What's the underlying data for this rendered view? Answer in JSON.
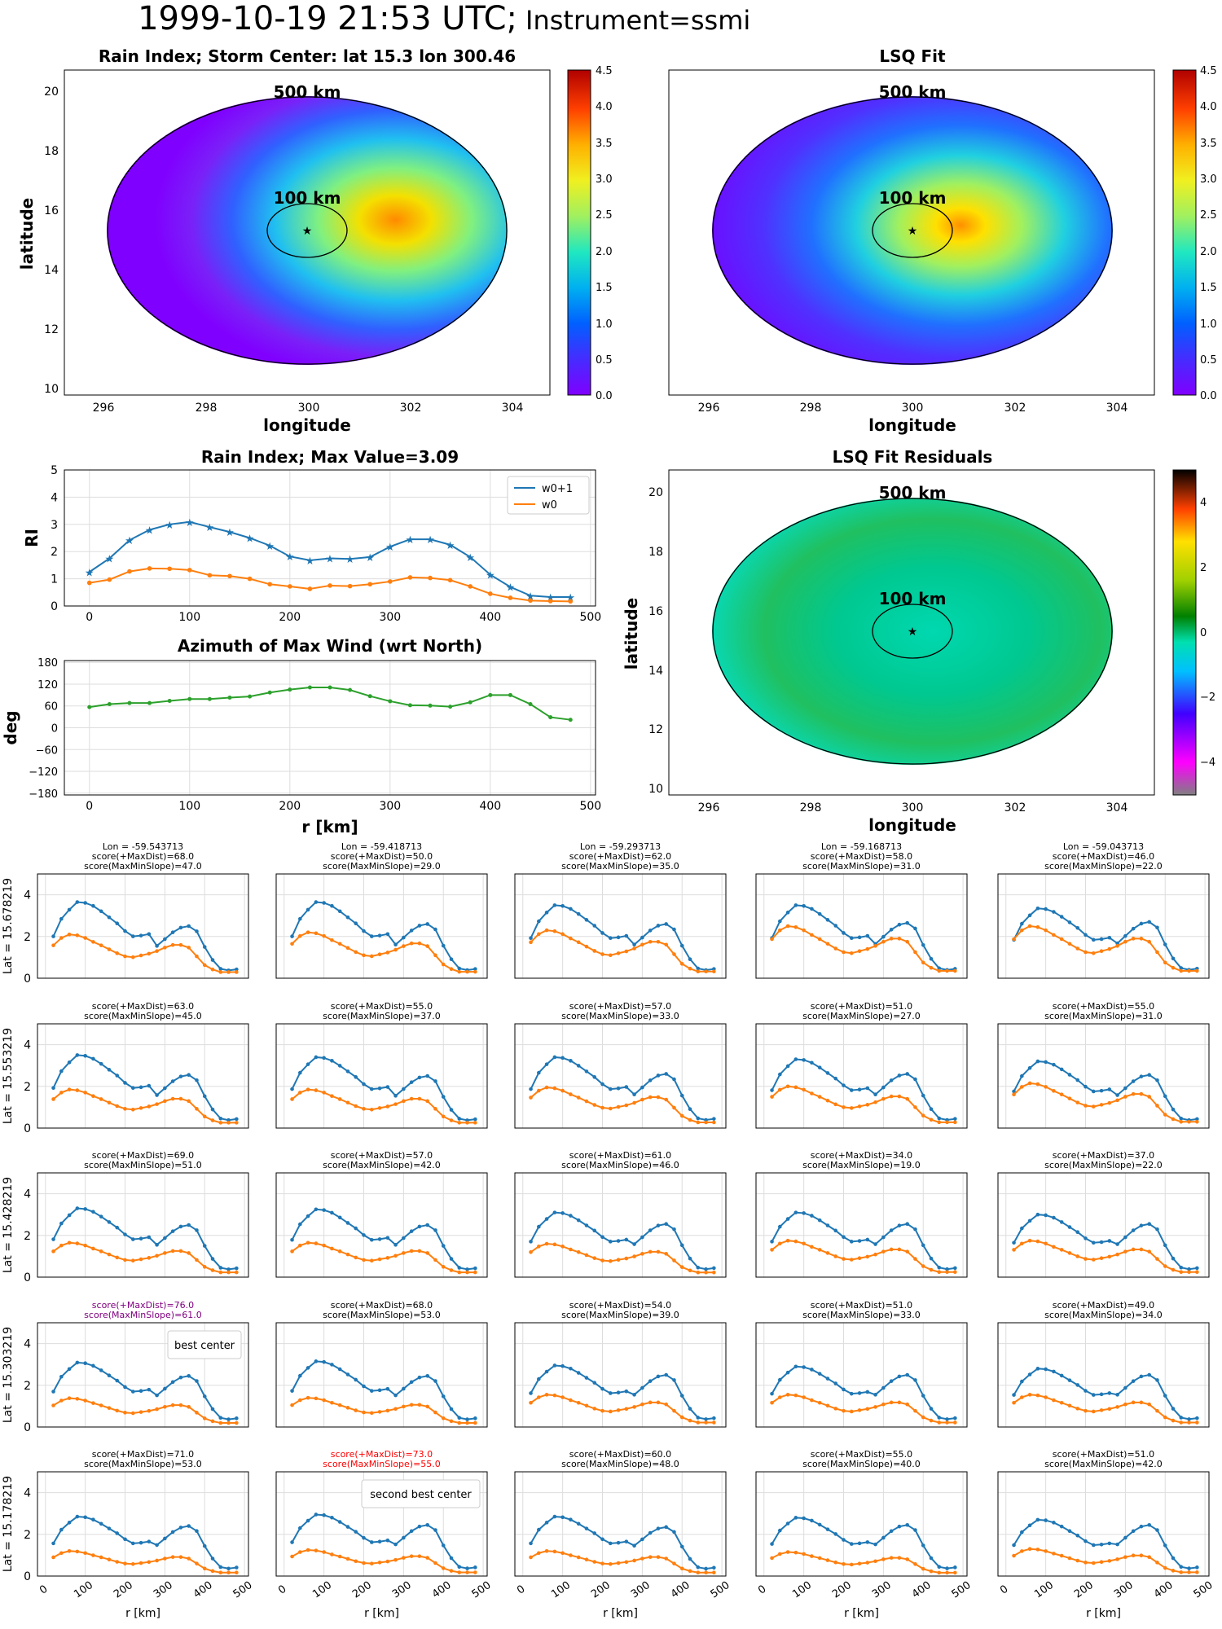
{
  "suptitle": {
    "main": "1999-10-19 21:53 UTC;",
    "instrument": "Instrument=ssmi"
  },
  "maps": [
    {
      "title": "Rain Index; Storm Center: lat 15.3 lon 300.46",
      "xlabel": "longitude",
      "ylabel": "latitude",
      "xticks": [
        "296",
        "298",
        "300",
        "302",
        "304",
        "306"
      ],
      "yticks": [
        "10",
        "12",
        "14",
        "16",
        "18",
        "20"
      ],
      "ring_outer": "500 km",
      "ring_inner": "100 km",
      "colorbar_ticks": [
        "0.0",
        "0.5",
        "1.0",
        "1.5",
        "2.0",
        "2.5",
        "3.0",
        "3.5",
        "4.0",
        "4.5"
      ]
    },
    {
      "title": "LSQ Fit",
      "xlabel": "longitude",
      "xticks": [
        "296",
        "298",
        "300",
        "302",
        "304",
        "306"
      ],
      "ring_outer": "500 km",
      "ring_inner": "100 km",
      "colorbar_ticks": [
        "0.0",
        "0.5",
        "1.0",
        "1.5",
        "2.0",
        "2.5",
        "3.0",
        "3.5",
        "4.0",
        "4.5"
      ]
    },
    {
      "title": "LSQ Fit Residuals",
      "xlabel": "longitude",
      "ylabel": "latitude",
      "xticks": [
        "296",
        "298",
        "300",
        "302",
        "304",
        "306"
      ],
      "yticks": [
        "10",
        "12",
        "14",
        "16",
        "18",
        "20"
      ],
      "ring_outer": "500 km",
      "ring_inner": "100 km",
      "colorbar_ticks": [
        "4",
        "2",
        "0",
        "−2",
        "−4"
      ]
    }
  ],
  "chart_data": [
    {
      "type": "heatmap",
      "title": "Rain Index; Storm Center: lat 15.3 lon 300.46",
      "xlabel": "longitude",
      "ylabel": "latitude",
      "xlim": [
        294.8,
        306.3
      ],
      "ylim": [
        9.8,
        20.8
      ],
      "colorbar_range": [
        0,
        4.5
      ],
      "storm_center": {
        "lon": 300.46,
        "lat": 15.3
      }
    },
    {
      "type": "heatmap",
      "title": "LSQ Fit",
      "xlabel": "longitude",
      "xlim": [
        294.8,
        306.3
      ],
      "ylim": [
        9.8,
        20.8
      ],
      "colorbar_range": [
        0,
        4.5
      ]
    },
    {
      "type": "line",
      "title": "Rain Index; Max Value=3.09",
      "ylabel": "RI",
      "x": [
        0,
        20,
        40,
        60,
        80,
        100,
        120,
        140,
        160,
        180,
        200,
        220,
        240,
        260,
        280,
        300,
        320,
        340,
        360,
        380,
        400,
        420,
        440,
        460,
        480
      ],
      "series": [
        {
          "name": "w0+1",
          "values": [
            1.25,
            1.75,
            2.42,
            2.8,
            3.0,
            3.09,
            2.9,
            2.72,
            2.5,
            2.22,
            1.82,
            1.68,
            1.75,
            1.73,
            1.8,
            2.18,
            2.45,
            2.45,
            2.25,
            1.8,
            1.15,
            0.7,
            0.38,
            0.33,
            0.33
          ]
        },
        {
          "name": "w0",
          "values": [
            0.85,
            0.97,
            1.27,
            1.38,
            1.37,
            1.32,
            1.13,
            1.1,
            1.0,
            0.8,
            0.72,
            0.63,
            0.75,
            0.73,
            0.8,
            0.9,
            1.05,
            1.03,
            0.95,
            0.72,
            0.45,
            0.3,
            0.2,
            0.18,
            0.17
          ]
        }
      ],
      "xlim": [
        -25,
        505
      ],
      "ylim": [
        0,
        5
      ],
      "xticks": [
        "0",
        "100",
        "200",
        "300",
        "400",
        "500"
      ],
      "yticks": [
        "0",
        "1",
        "2",
        "3",
        "4",
        "5"
      ],
      "legend": "top-right",
      "grid": true
    },
    {
      "type": "line",
      "title": "Azimuth of Max Wind (wrt North)",
      "ylabel": "deg",
      "xlabel": "r [km]",
      "x": [
        0,
        20,
        40,
        60,
        80,
        100,
        120,
        140,
        160,
        180,
        200,
        220,
        240,
        260,
        280,
        300,
        320,
        340,
        360,
        380,
        400,
        420,
        440,
        460,
        480
      ],
      "values": [
        57,
        65,
        68,
        68,
        74,
        79,
        79,
        83,
        86,
        97,
        105,
        111,
        111,
        104,
        87,
        73,
        62,
        61,
        58,
        70,
        90,
        90,
        65,
        29,
        22
      ],
      "xlim": [
        -25,
        505
      ],
      "ylim": [
        -185,
        185
      ],
      "xticks": [
        "0",
        "100",
        "200",
        "300",
        "400",
        "500"
      ],
      "yticks": [
        "180",
        "120",
        "60",
        "0",
        "−60",
        "−120",
        "−180"
      ],
      "grid": true
    },
    {
      "type": "heatmap",
      "title": "LSQ Fit Residuals",
      "xlabel": "longitude",
      "ylabel": "latitude",
      "xlim": [
        294.8,
        306.3
      ],
      "ylim": [
        9.8,
        20.8
      ],
      "colorbar_range": [
        -5,
        5
      ]
    },
    {
      "type": "line",
      "grid_of_small_multiples": true,
      "xlabel": "r [km]",
      "xticks": [
        "0",
        "100",
        "200",
        "300",
        "400",
        "500"
      ],
      "yticks": [
        "0",
        "2",
        "4"
      ],
      "xlim": [
        -20,
        510
      ],
      "ylim": [
        0,
        5
      ],
      "grid": true,
      "columns": [
        {
          "lon_title": "Lon = -59.543713"
        },
        {
          "lon_title": "Lon = -59.418713"
        },
        {
          "lon_title": "Lon = -59.293713"
        },
        {
          "lon_title": "Lon = -59.168713"
        },
        {
          "lon_title": "Lon = -59.043713"
        }
      ],
      "rows": [
        {
          "lat_label": "Lat = 15.678219",
          "panels": [
            {
              "s1": "score(+MaxDist)=68.0",
              "s2": "score(MaxMinSlope)=47.0",
              "peak1": 3.65,
              "peak2": 2.5,
              "w0peak": 2.1
            },
            {
              "s1": "score(+MaxDist)=50.0",
              "s2": "score(MaxMinSlope)=29.0",
              "peak1": 3.65,
              "peak2": 2.6,
              "w0peak": 2.2
            },
            {
              "s1": "score(+MaxDist)=62.0",
              "s2": "score(MaxMinSlope)=35.0",
              "peak1": 3.5,
              "peak2": 2.6,
              "w0peak": 2.3
            },
            {
              "s1": "score(+MaxDist)=58.0",
              "s2": "score(MaxMinSlope)=31.0",
              "peak1": 3.5,
              "peak2": 2.65,
              "w0peak": 2.5
            },
            {
              "s1": "score(+MaxDist)=46.0",
              "s2": "score(MaxMinSlope)=22.0",
              "peak1": 3.35,
              "peak2": 2.7,
              "w0peak": 2.5
            }
          ]
        },
        {
          "lat_label": "Lat = 15.553219",
          "panels": [
            {
              "s1": "score(+MaxDist)=63.0",
              "s2": "score(MaxMinSlope)=45.0",
              "peak1": 3.5,
              "peak2": 2.55,
              "w0peak": 1.85
            },
            {
              "s1": "score(+MaxDist)=55.0",
              "s2": "score(MaxMinSlope)=37.0",
              "peak1": 3.4,
              "peak2": 2.5,
              "w0peak": 1.85
            },
            {
              "s1": "score(+MaxDist)=57.0",
              "s2": "score(MaxMinSlope)=33.0",
              "peak1": 3.4,
              "peak2": 2.6,
              "w0peak": 1.95
            },
            {
              "s1": "score(+MaxDist)=51.0",
              "s2": "score(MaxMinSlope)=27.0",
              "peak1": 3.3,
              "peak2": 2.6,
              "w0peak": 2.0
            },
            {
              "s1": "score(+MaxDist)=55.0",
              "s2": "score(MaxMinSlope)=31.0",
              "peak1": 3.2,
              "peak2": 2.55,
              "w0peak": 2.15
            }
          ]
        },
        {
          "lat_label": "Lat = 15.428219",
          "panels": [
            {
              "s1": "score(+MaxDist)=69.0",
              "s2": "score(MaxMinSlope)=51.0",
              "peak1": 3.3,
              "peak2": 2.5,
              "w0peak": 1.65
            },
            {
              "s1": "score(+MaxDist)=57.0",
              "s2": "score(MaxMinSlope)=42.0",
              "peak1": 3.25,
              "peak2": 2.5,
              "w0peak": 1.65
            },
            {
              "s1": "score(+MaxDist)=61.0",
              "s2": "score(MaxMinSlope)=46.0",
              "peak1": 3.1,
              "peak2": 2.55,
              "w0peak": 1.6
            },
            {
              "s1": "score(+MaxDist)=34.0",
              "s2": "score(MaxMinSlope)=19.0",
              "peak1": 3.1,
              "peak2": 2.55,
              "w0peak": 1.75
            },
            {
              "s1": "score(+MaxDist)=37.0",
              "s2": "score(MaxMinSlope)=22.0",
              "peak1": 3.0,
              "peak2": 2.55,
              "w0peak": 1.75
            }
          ]
        },
        {
          "lat_label": "Lat = 15.303219",
          "panels": [
            {
              "s1": "score(+MaxDist)=76.0",
              "s2": "score(MaxMinSlope)=61.0",
              "peak1": 3.09,
              "peak2": 2.45,
              "w0peak": 1.38,
              "color": "#800080",
              "note": "best center"
            },
            {
              "s1": "score(+MaxDist)=68.0",
              "s2": "score(MaxMinSlope)=53.0",
              "peak1": 3.15,
              "peak2": 2.45,
              "w0peak": 1.4
            },
            {
              "s1": "score(+MaxDist)=54.0",
              "s2": "score(MaxMinSlope)=39.0",
              "peak1": 2.95,
              "peak2": 2.5,
              "w0peak": 1.55
            },
            {
              "s1": "score(+MaxDist)=51.0",
              "s2": "score(MaxMinSlope)=33.0",
              "peak1": 2.9,
              "peak2": 2.5,
              "w0peak": 1.55
            },
            {
              "s1": "score(+MaxDist)=49.0",
              "s2": "score(MaxMinSlope)=34.0",
              "peak1": 2.8,
              "peak2": 2.5,
              "w0peak": 1.55
            }
          ]
        },
        {
          "lat_label": "Lat = 15.178219",
          "panels": [
            {
              "s1": "score(+MaxDist)=71.0",
              "s2": "score(MaxMinSlope)=53.0",
              "peak1": 2.85,
              "peak2": 2.4,
              "w0peak": 1.2
            },
            {
              "s1": "score(+MaxDist)=73.0",
              "s2": "score(MaxMinSlope)=55.0",
              "peak1": 2.95,
              "peak2": 2.45,
              "w0peak": 1.25,
              "color": "#ff0000",
              "note": "second best center"
            },
            {
              "s1": "score(+MaxDist)=60.0",
              "s2": "score(MaxMinSlope)=48.0",
              "peak1": 2.85,
              "peak2": 2.35,
              "w0peak": 1.2
            },
            {
              "s1": "score(+MaxDist)=55.0",
              "s2": "score(MaxMinSlope)=40.0",
              "peak1": 2.8,
              "peak2": 2.45,
              "w0peak": 1.15
            },
            {
              "s1": "score(+MaxDist)=51.0",
              "s2": "score(MaxMinSlope)=42.0",
              "peak1": 2.7,
              "peak2": 2.45,
              "w0peak": 1.3
            }
          ]
        }
      ]
    }
  ],
  "colors": {
    "w0p1": "#1f77b4",
    "w0": "#ff7f0e",
    "azimuth": "#2ca02c",
    "grid": "#dddddd",
    "best": "#800080",
    "second_best": "#ff0000"
  }
}
